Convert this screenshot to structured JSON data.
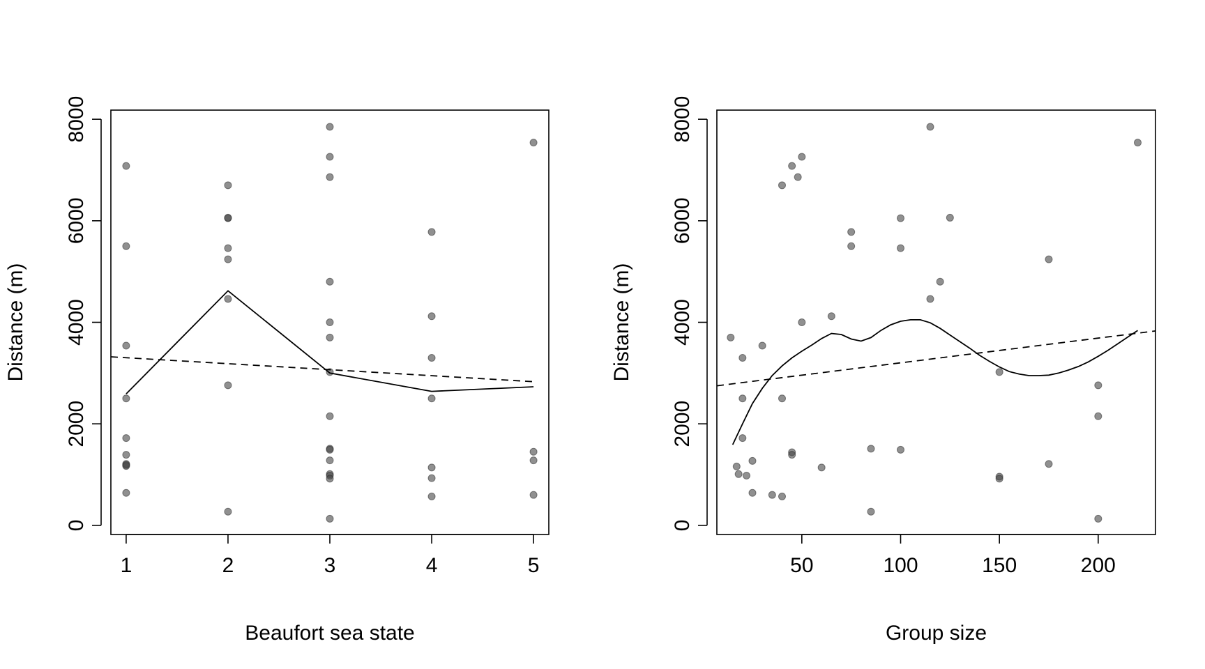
{
  "chart_data": [
    {
      "type": "scatter",
      "title": "",
      "xlabel": "Beaufort sea state",
      "ylabel": "Distance (m)",
      "xlim": [
        0.85,
        5.15
      ],
      "ylim": [
        -180,
        8180
      ],
      "xticks": [
        "1",
        "2",
        "3",
        "4",
        "5"
      ],
      "yticks": [
        "0",
        "2000",
        "4000",
        "6000",
        "8000"
      ],
      "grid": false,
      "points": {
        "x": [
          1,
          1,
          1,
          1,
          1,
          1,
          1,
          1,
          1,
          1,
          2,
          2,
          2,
          2,
          2,
          2,
          2,
          2,
          3,
          3,
          3,
          3,
          3,
          3,
          3,
          3,
          3,
          3,
          3,
          3,
          3,
          3,
          3,
          4,
          4,
          4,
          4,
          4,
          4,
          4,
          5,
          5,
          5,
          5
        ],
        "y": [
          7080,
          5500,
          3540,
          2500,
          1720,
          1390,
          1210,
          1170,
          1190,
          640,
          6700,
          6050,
          6060,
          5460,
          5240,
          4460,
          2760,
          270,
          7850,
          7260,
          6860,
          4800,
          4000,
          3700,
          3020,
          2150,
          1510,
          1490,
          1280,
          1010,
          980,
          920,
          130,
          5780,
          4120,
          3300,
          2500,
          1140,
          930,
          570,
          7540,
          1450,
          1280,
          600
        ]
      },
      "series": [
        {
          "style": "solid",
          "x": [
            1,
            2,
            3,
            4,
            5
          ],
          "y": [
            2590,
            4620,
            3000,
            2640,
            2730
          ]
        },
        {
          "style": "dashed",
          "x": [
            0.85,
            5
          ],
          "y": [
            3320,
            2830
          ]
        }
      ]
    },
    {
      "type": "scatter",
      "title": "",
      "xlabel": "Group size",
      "ylabel": "Distance (m)",
      "xlim": [
        7,
        229
      ],
      "ylim": [
        -180,
        8180
      ],
      "xticks": [
        "50",
        "100",
        "150",
        "200"
      ],
      "yticks": [
        "0",
        "2000",
        "4000",
        "6000",
        "8000"
      ],
      "grid": false,
      "points": {
        "x": [
          14,
          17,
          18,
          20,
          20,
          20,
          22,
          25,
          25,
          30,
          35,
          40,
          40,
          40,
          45,
          45,
          45,
          48,
          50,
          50,
          60,
          65,
          75,
          75,
          85,
          85,
          100,
          100,
          100,
          115,
          115,
          120,
          125,
          150,
          150,
          150,
          175,
          175,
          200,
          200,
          200,
          220
        ],
        "y": [
          3700,
          1160,
          1010,
          3300,
          2500,
          1720,
          980,
          1270,
          640,
          3540,
          600,
          6700,
          2500,
          570,
          7080,
          1440,
          1390,
          6860,
          7260,
          4000,
          1140,
          4120,
          5780,
          5500,
          1510,
          270,
          6050,
          5460,
          1490,
          7850,
          4460,
          4800,
          6060,
          3020,
          960,
          920,
          5240,
          1210,
          2760,
          2150,
          130,
          7540
        ]
      },
      "series": [
        {
          "style": "solid",
          "x": [
            15,
            20,
            25,
            30,
            35,
            40,
            45,
            50,
            55,
            60,
            65,
            70,
            75,
            80,
            85,
            90,
            95,
            100,
            105,
            110,
            115,
            120,
            125,
            130,
            135,
            140,
            145,
            150,
            155,
            160,
            165,
            170,
            175,
            180,
            185,
            190,
            195,
            200,
            205,
            210,
            215,
            220
          ],
          "y": [
            1590,
            2000,
            2400,
            2700,
            2950,
            3140,
            3300,
            3430,
            3550,
            3680,
            3780,
            3760,
            3670,
            3630,
            3700,
            3840,
            3950,
            4020,
            4050,
            4050,
            3990,
            3880,
            3750,
            3620,
            3490,
            3350,
            3230,
            3120,
            3030,
            2980,
            2950,
            2950,
            2960,
            3000,
            3060,
            3130,
            3220,
            3330,
            3450,
            3580,
            3710,
            3840
          ]
        },
        {
          "style": "dashed",
          "x": [
            7,
            229
          ],
          "y": [
            2750,
            3830
          ]
        }
      ]
    }
  ]
}
